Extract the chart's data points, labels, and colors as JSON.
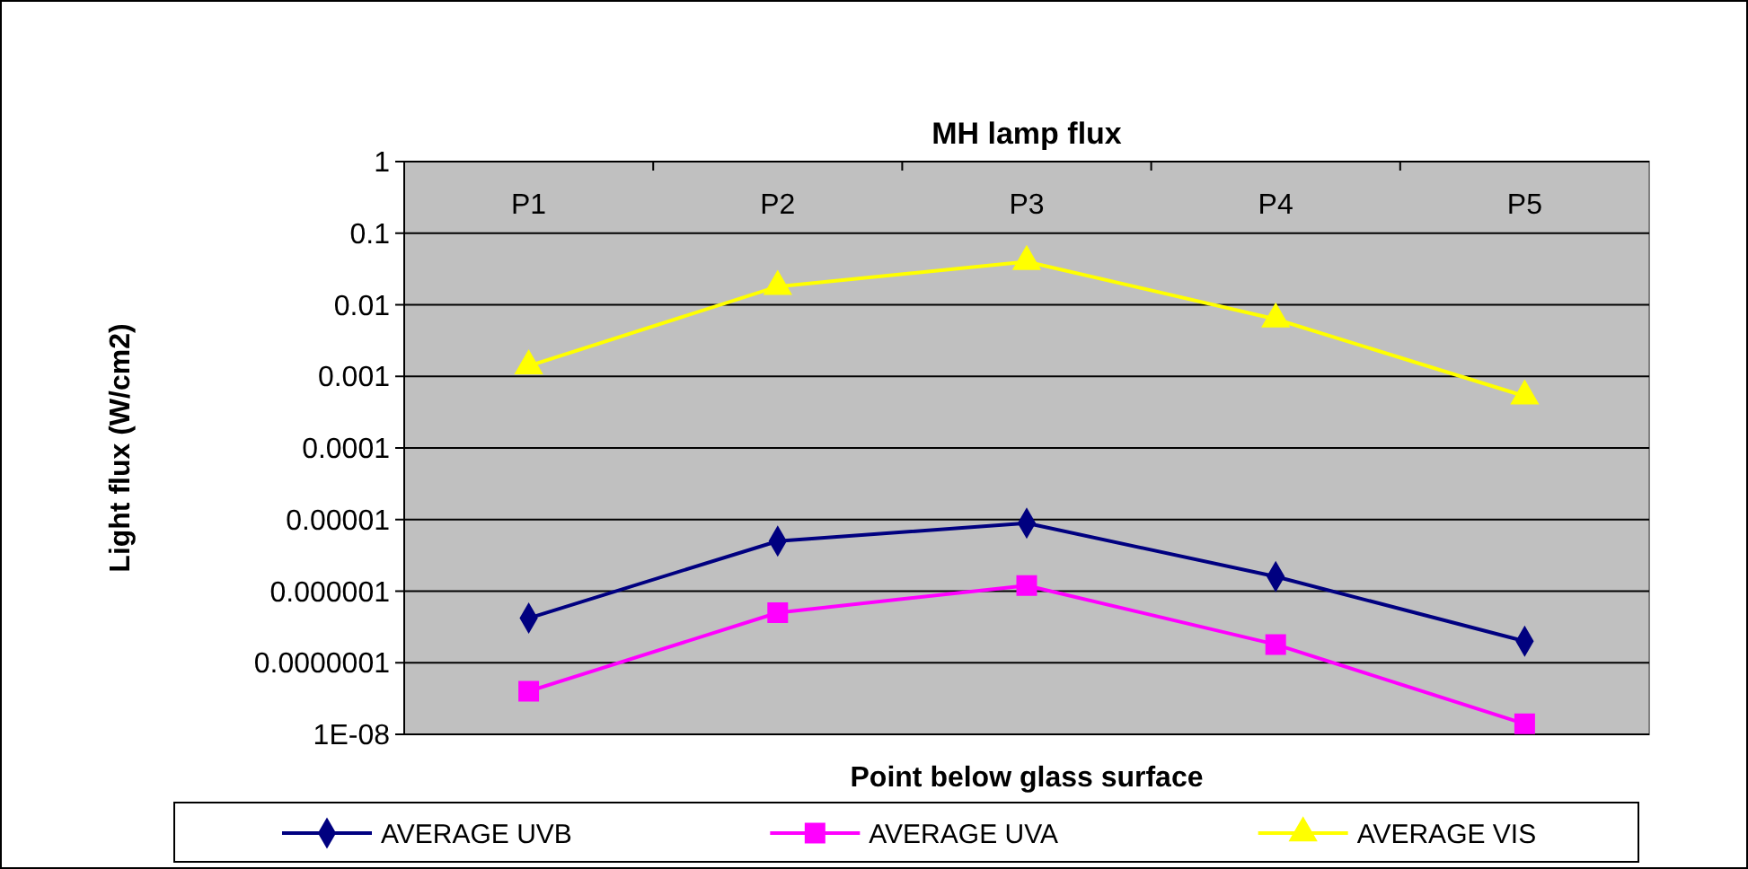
{
  "chart_data": {
    "type": "line",
    "title": "MH lamp flux",
    "xlabel": "Point below glass surface",
    "ylabel": "Light flux (W/cm2)",
    "categories": [
      "P1",
      "P2",
      "P3",
      "P4",
      "P5"
    ],
    "series": [
      {
        "name": "AVERAGE UVB",
        "color": "#000080",
        "marker": "diamond",
        "values": [
          4.2e-07,
          5e-06,
          8.9e-06,
          1.6e-06,
          2e-07
        ]
      },
      {
        "name": "AVERAGE UVA",
        "color": "#ff00ff",
        "marker": "square",
        "values": [
          4e-08,
          5e-07,
          1.2e-06,
          1.8e-07,
          1.4e-08
        ]
      },
      {
        "name": "AVERAGE VIS",
        "color": "#ffff00",
        "marker": "triangle",
        "values": [
          0.0014,
          0.018,
          0.04,
          0.0063,
          0.00053
        ]
      }
    ],
    "log": "y",
    "ylim": [
      1e-08,
      1
    ],
    "yticks": [
      {
        "value": 1e-08,
        "label": "1E-08"
      },
      {
        "value": 1e-07,
        "label": "0.0000001"
      },
      {
        "value": 1e-06,
        "label": "0.000001"
      },
      {
        "value": 1e-05,
        "label": "0.00001"
      },
      {
        "value": 0.0001,
        "label": "0.0001"
      },
      {
        "value": 0.001,
        "label": "0.001"
      },
      {
        "value": 0.01,
        "label": "0.01"
      },
      {
        "value": 0.1,
        "label": "0.1"
      },
      {
        "value": 1,
        "label": "1"
      }
    ],
    "grid": "y",
    "legend": "bottom"
  }
}
